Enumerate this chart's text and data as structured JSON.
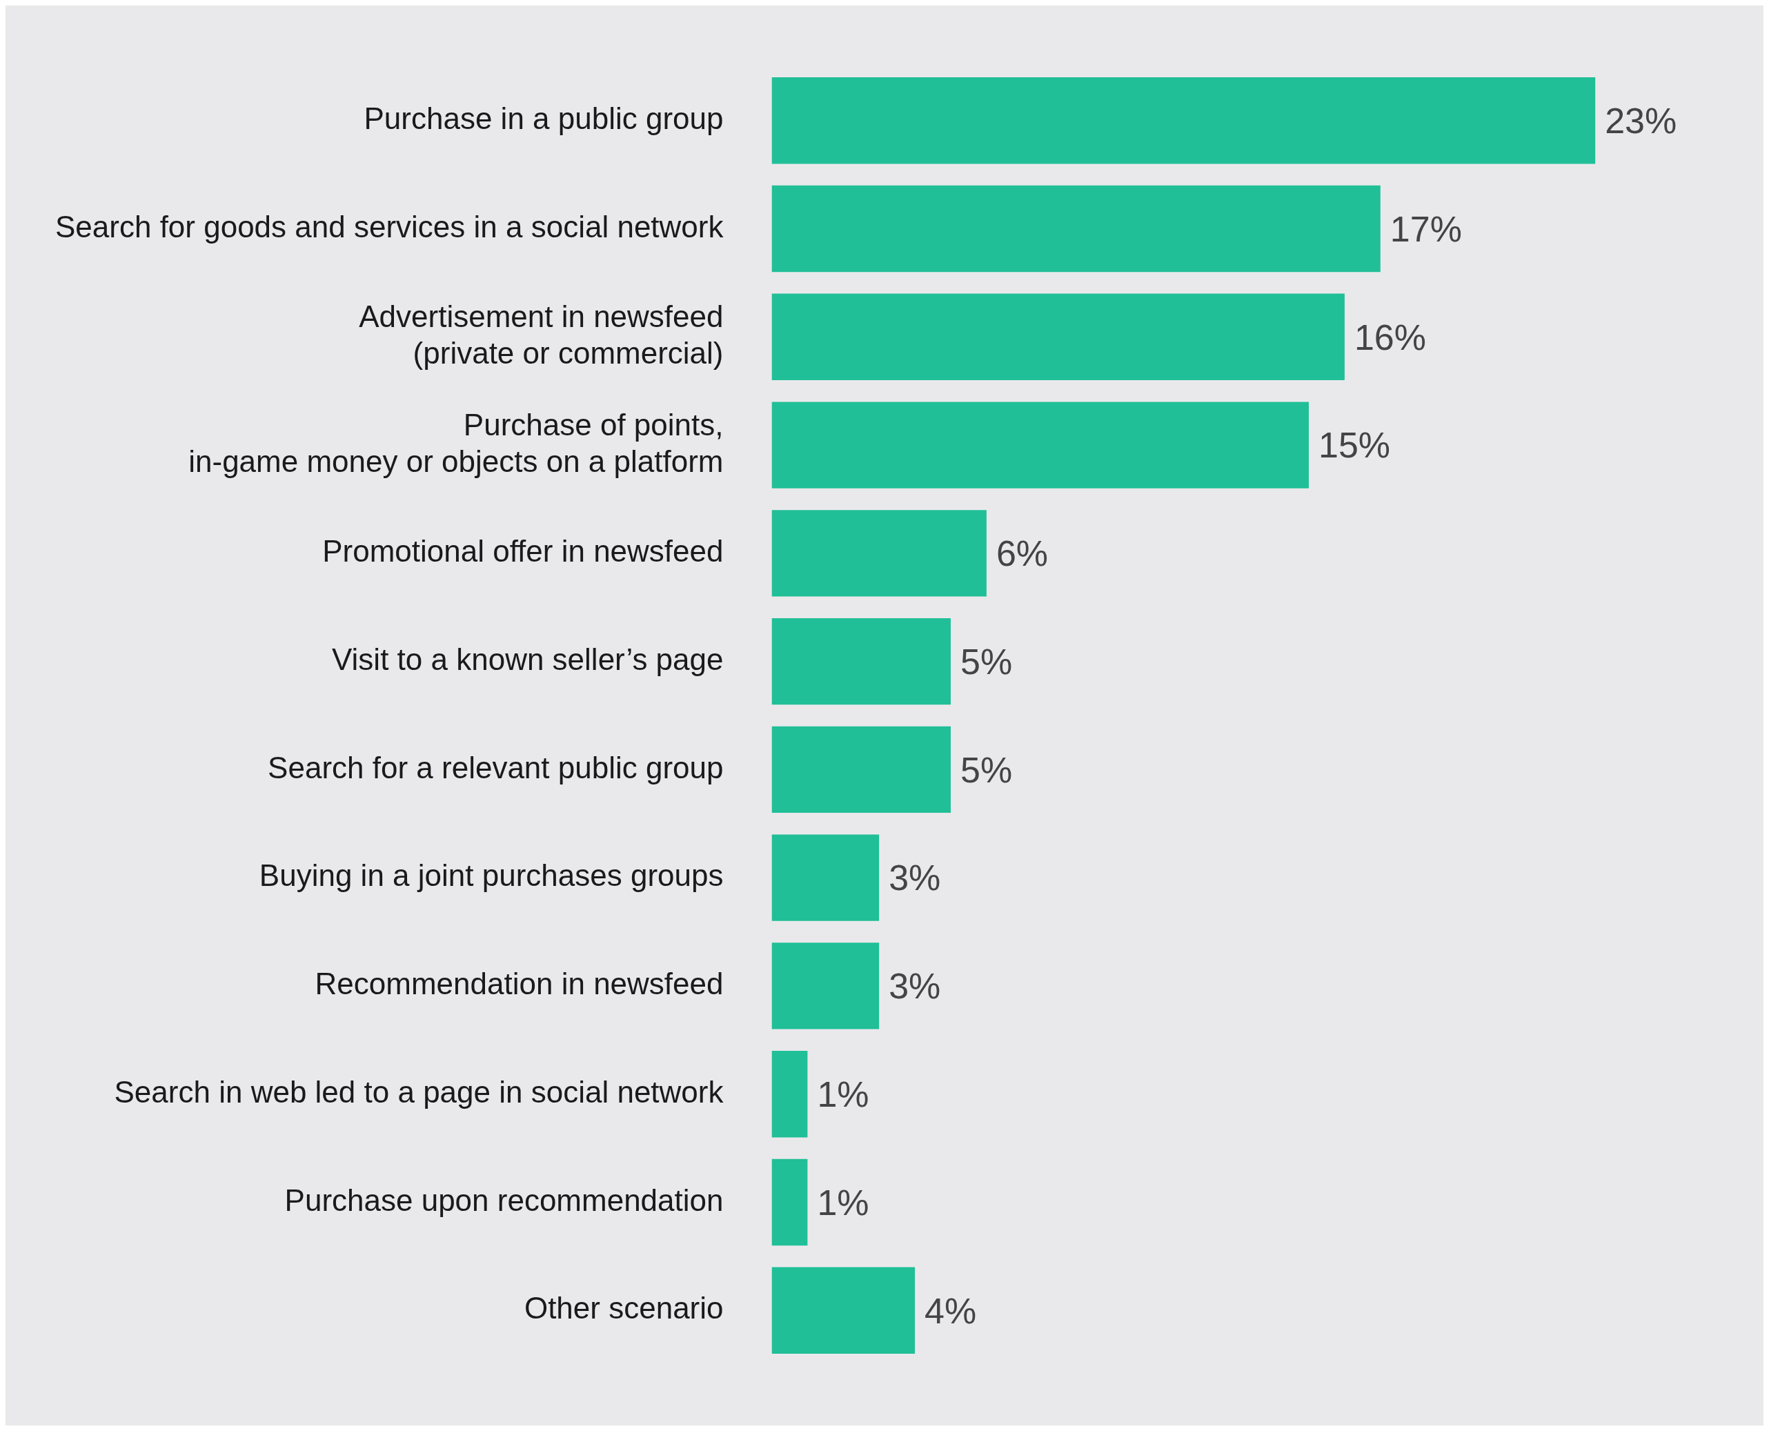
{
  "chart_data": {
    "type": "bar",
    "orientation": "horizontal",
    "categories": [
      "Purchase in a public group",
      "Search for goods and services in a social network",
      "Advertisement in newsfeed\n(private or commercial)",
      "Purchase of points,\nin-game money or objects on a platform",
      "Promotional offer in newsfeed",
      "Visit to a known seller’s page",
      "Search for a relevant public group",
      "Buying in a joint purchases groups",
      "Recommendation in newsfeed",
      "Search in web led to a page in social network",
      "Purchase upon recommendation",
      "Other scenario"
    ],
    "values": [
      23,
      17,
      16,
      15,
      6,
      5,
      5,
      3,
      3,
      1,
      1,
      4
    ],
    "value_labels": [
      "23%",
      "17%",
      "16%",
      "15%",
      "6%",
      "5%",
      "5%",
      "3%",
      "3%",
      "1%",
      "1%",
      "4%"
    ],
    "color": "#20bf97"
  }
}
